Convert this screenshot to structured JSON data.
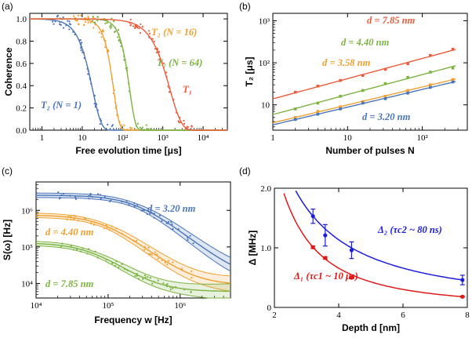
{
  "colors": {
    "blue": "#4a74b8",
    "orange": "#f0a032",
    "green": "#7cb342",
    "red": "#ec5b3c",
    "dblue": "#1c1ce0",
    "dred": "#e01818"
  },
  "chart_data": [
    {
      "panel_label": "(a)",
      "type": "line",
      "xscale": "log",
      "xlim": [
        0.5,
        40000
      ],
      "ylim": [
        0,
        1.05
      ],
      "xlabel": "Free evolution time [μs]",
      "ylabel": "Coherence",
      "xticks": [
        {
          "v": 1,
          "t": "1"
        },
        {
          "v": 10,
          "t": "10"
        },
        {
          "v": 100,
          "t": "10²"
        },
        {
          "v": 1000,
          "t": "10³"
        },
        {
          "v": 10000,
          "t": "10⁴"
        }
      ],
      "yticks": [
        {
          "v": 0,
          "t": "0.0"
        },
        {
          "v": 0.2,
          "t": "0.2"
        },
        {
          "v": 0.4,
          "t": "0.4"
        },
        {
          "v": 0.6,
          "t": "0.6"
        },
        {
          "v": 0.8,
          "t": "0.8"
        },
        {
          "v": 1.0,
          "t": "1.0"
        }
      ],
      "series": [
        {
          "name": "T₂ (N = 1)",
          "label": "T₂ (N = 1)",
          "color": "blue",
          "T2": 18,
          "n": 2
        },
        {
          "name": "T₂ (N = 16)",
          "label": "T₂ (N = 16)",
          "color": "orange",
          "T2": 60,
          "n": 3
        },
        {
          "name": "T₂ (N = 64)",
          "label": "T₂ (N = 64)",
          "color": "green",
          "T2": 150,
          "n": 3
        },
        {
          "name": "T₁",
          "label": "T₁",
          "color": "red",
          "T2": 1500,
          "n": 1.5
        }
      ]
    },
    {
      "panel_label": "(b)",
      "type": "line",
      "xscale": "log",
      "yscale": "log",
      "xlim": [
        1,
        400
      ],
      "ylim": [
        2.5,
        1500
      ],
      "xlabel": "Number of pulses N",
      "ylabel": "T₂ [μs]",
      "xticks": [
        {
          "v": 1,
          "t": "1"
        },
        {
          "v": 10,
          "t": "10"
        },
        {
          "v": 100,
          "t": "10²"
        }
      ],
      "yticks": [
        {
          "v": 10,
          "t": "10"
        },
        {
          "v": 100,
          "t": "10²"
        },
        {
          "v": 1000,
          "t": "10³"
        }
      ],
      "x": [
        2,
        4,
        8,
        16,
        32,
        64,
        128,
        256
      ],
      "series": [
        {
          "name": "d = 7.85 nm",
          "color": "red",
          "values": [
            20,
            28,
            38,
            50,
            70,
            95,
            150,
            210
          ]
        },
        {
          "name": "d = 4.40 nm",
          "color": "green",
          "values": [
            8,
            11,
            16,
            22,
            32,
            45,
            60,
            75
          ]
        },
        {
          "name": "d = 3.58 nm",
          "color": "orange",
          "values": [
            5,
            7,
            9,
            12,
            16,
            22,
            30,
            40
          ]
        },
        {
          "name": "d = 3.20 nm",
          "color": "blue",
          "values": [
            4.5,
            6,
            8,
            11,
            14,
            19,
            26,
            35
          ]
        }
      ]
    },
    {
      "panel_label": "(c)",
      "type": "line",
      "xscale": "log",
      "yscale": "log",
      "xlim": [
        10000,
        5000000
      ],
      "ylim": [
        4000,
        6000000
      ],
      "xlabel": "Frequency w [Hz]",
      "ylabel": "S(ω) [Hz]",
      "xticks": [
        {
          "v": 10000,
          "t": "10⁴"
        },
        {
          "v": 100000,
          "t": "10⁵"
        },
        {
          "v": 1000000,
          "t": "10⁶"
        }
      ],
      "yticks": [
        {
          "v": 10000,
          "t": "10⁴"
        },
        {
          "v": 100000,
          "t": "10⁵"
        },
        {
          "v": 1000000,
          "t": "10⁶"
        }
      ],
      "series": [
        {
          "name": "d = 3.20 nm",
          "color": "blue",
          "S0": 2600000,
          "fc": 250000,
          "floor": 12000
        },
        {
          "name": "d = 4.40 nm",
          "color": "orange",
          "S0": 750000,
          "fc": 90000,
          "floor": 9000
        },
        {
          "name": "d = 7.85 nm",
          "color": "green",
          "S0": 130000,
          "fc": 60000,
          "floor": 6000
        }
      ]
    },
    {
      "panel_label": "(d)",
      "type": "scatter",
      "xlim": [
        2,
        8
      ],
      "ylim": [
        0,
        2.0
      ],
      "xlabel": "Depth d [nm]",
      "ylabel": "Δ [MHz]",
      "xticks": [
        {
          "v": 2,
          "t": "2"
        },
        {
          "v": 4,
          "t": "4"
        },
        {
          "v": 6,
          "t": "6"
        },
        {
          "v": 8,
          "t": "8"
        }
      ],
      "yticks": [
        {
          "v": 0,
          "t": "0"
        },
        {
          "v": 1,
          "t": "1.0"
        },
        {
          "v": 2,
          "t": "2.0"
        }
      ],
      "series": [
        {
          "name": "Δ₂ (τc2 ~ 80 ns)",
          "color": "dblue",
          "x": [
            3.2,
            3.58,
            4.4,
            7.85
          ],
          "values": [
            1.53,
            1.21,
            0.96,
            0.46
          ],
          "errors": [
            0.12,
            0.18,
            0.14,
            0.08
          ]
        },
        {
          "name": "Δ₁ (τc1 ~ 10 μs)",
          "color": "dred",
          "x": [
            3.2,
            3.58,
            4.4,
            7.85
          ],
          "values": [
            1.01,
            0.83,
            0.5,
            0.18
          ],
          "errors": [
            0.02,
            0.02,
            0.02,
            0.01
          ]
        }
      ]
    }
  ]
}
